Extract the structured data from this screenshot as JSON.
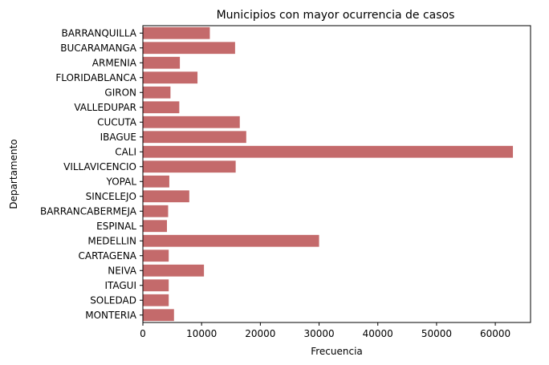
{
  "chart_data": {
    "type": "bar",
    "orientation": "horizontal",
    "title": "Municipios con mayor ocurrencia de casos",
    "xlabel": "Frecuencia",
    "ylabel": "Departamento",
    "categories": [
      "BARRANQUILLA",
      "BUCARAMANGA",
      "ARMENIA",
      "FLORIDABLANCA",
      "GIRON",
      "VALLEDUPAR",
      "CUCUTA",
      "IBAGUE",
      "CALI",
      "VILLAVICENCIO",
      "YOPAL",
      "SINCELEJO",
      "BARRANCABERMEJA",
      "ESPINAL",
      "MEDELLIN",
      "CARTAGENA",
      "NEIVA",
      "ITAGUI",
      "SOLEDAD",
      "MONTERIA"
    ],
    "values": [
      11400,
      15700,
      6300,
      9300,
      4700,
      6200,
      16500,
      17600,
      63000,
      15800,
      4500,
      7900,
      4300,
      4100,
      30000,
      4400,
      10400,
      4400,
      4400,
      5300
    ],
    "xlim": [
      0,
      66000
    ],
    "xticks": [
      0,
      10000,
      20000,
      30000,
      40000,
      50000,
      60000
    ],
    "xtick_labels": [
      "0",
      "10000",
      "20000",
      "30000",
      "40000",
      "50000",
      "60000"
    ],
    "bar_color": "#c46a6b",
    "grid": false,
    "legend": "none"
  }
}
